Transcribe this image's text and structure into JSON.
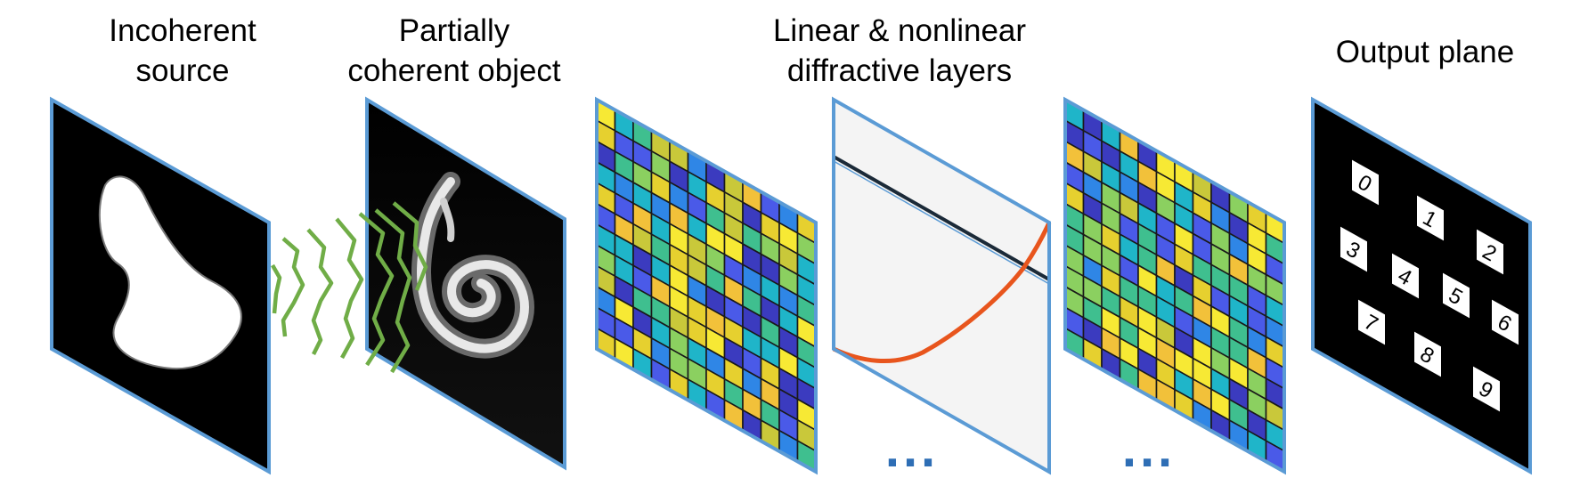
{
  "labels": {
    "source": [
      "Incoherent",
      "source"
    ],
    "object": [
      "Partially",
      "coherent object"
    ],
    "layers": [
      "Linear & nonlinear",
      "diffractive layers"
    ],
    "output": "Output plane"
  },
  "output_digits": [
    "0",
    "1",
    "2",
    "3",
    "4",
    "5",
    "6",
    "7",
    "8",
    "9"
  ],
  "ellipsis": [
    "...",
    "..."
  ],
  "colors": {
    "frame": "#5b9bd5",
    "wave": "#70ad47",
    "curve": "#e8551d",
    "ellipsis": "#2e6eb5",
    "layer_palette": [
      "#3b3bbf",
      "#4a5ae8",
      "#2f86e6",
      "#1fb5c9",
      "#3fbf8f",
      "#8bd060",
      "#c9c83a",
      "#f2c13a",
      "#f7e934",
      "#e6d02f"
    ]
  },
  "icons": {
    "source_shape": "white-blob-icon",
    "object_shape": "handwritten-digit-six-icon",
    "waves": "wavefront-icon",
    "nonlinearity": "activation-curve-icon"
  }
}
